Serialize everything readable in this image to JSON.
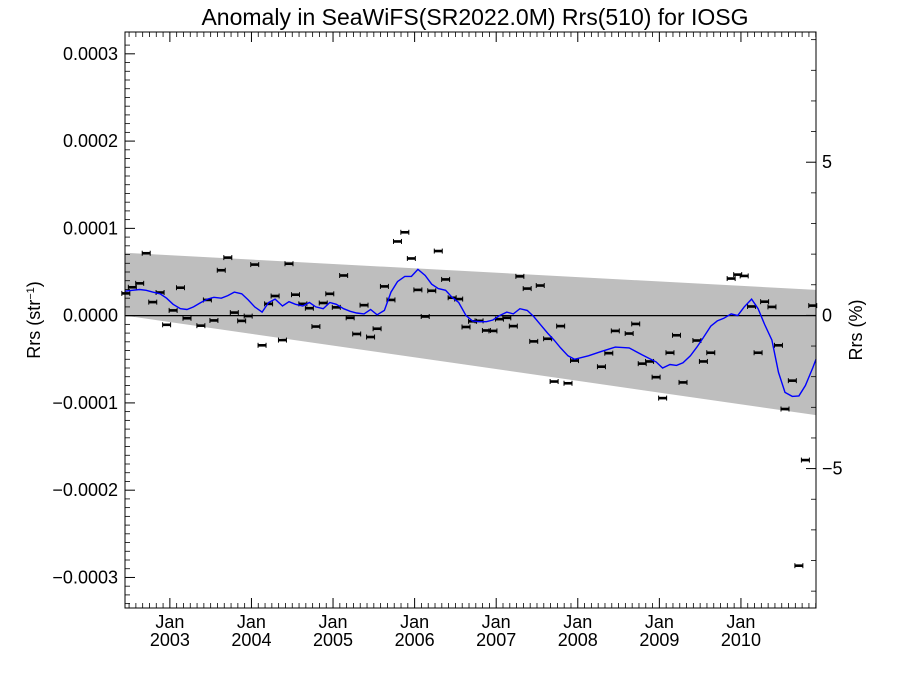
{
  "chart_data": {
    "type": "scatter",
    "title": "Anomaly in SeaWiFS(SR2022.0M) Rrs(510) for IOSG",
    "ylabel": "Rrs (str",
    "ylabel_sup": "−1",
    "ylabel_close": ")",
    "y2label": "Rrs (%)",
    "xlim": [
      2002.45,
      2010.92
    ],
    "ylim": [
      -0.000335,
      0.000325
    ],
    "y2lim": [
      -9.55,
      9.25
    ],
    "grid": false,
    "legend": "none",
    "x_ticks": [
      {
        "value": 2003.0,
        "month": "Jan",
        "year": "2003"
      },
      {
        "value": 2004.0,
        "month": "Jan",
        "year": "2004"
      },
      {
        "value": 2005.0,
        "month": "Jan",
        "year": "2005"
      },
      {
        "value": 2006.0,
        "month": "Jan",
        "year": "2006"
      },
      {
        "value": 2007.0,
        "month": "Jan",
        "year": "2007"
      },
      {
        "value": 2008.0,
        "month": "Jan",
        "year": "2008"
      },
      {
        "value": 2009.0,
        "month": "Jan",
        "year": "2009"
      },
      {
        "value": 2010.0,
        "month": "Jan",
        "year": "2010"
      }
    ],
    "y_ticks": [
      {
        "value": 0.0003,
        "label": "0.0003"
      },
      {
        "value": 0.0002,
        "label": "0.0002"
      },
      {
        "value": 0.0001,
        "label": "0.0001"
      },
      {
        "value": 0.0,
        "label": "0.0000"
      },
      {
        "value": -0.0001,
        "label": "−0.0001"
      },
      {
        "value": -0.0002,
        "label": "−0.0002"
      },
      {
        "value": -0.0003,
        "label": "−0.0003"
      }
    ],
    "y2_ticks": [
      {
        "value": 5,
        "label": "5"
      },
      {
        "value": 0,
        "label": "0"
      },
      {
        "value": -5,
        "label": "−5"
      }
    ],
    "band": {
      "x": [
        2002.45,
        2010.92
      ],
      "upper": [
        7.2e-05,
        2.95e-05
      ],
      "lower": [
        0.0,
        -0.000114
      ]
    },
    "band_color": "#bebebe",
    "line_color": "#0000ff",
    "zero_line": 0.0,
    "points": [
      {
        "x": 2002.46,
        "y": 2.55e-05
      },
      {
        "x": 2002.54,
        "y": 3.25e-05
      },
      {
        "x": 2002.63,
        "y": 3.7e-05
      },
      {
        "x": 2002.71,
        "y": 7.15e-05
      },
      {
        "x": 2002.79,
        "y": 1.55e-05
      },
      {
        "x": 2002.88,
        "y": 2.65e-05
      },
      {
        "x": 2002.96,
        "y": -1.05e-05
      },
      {
        "x": 2003.04,
        "y": 6e-06
      },
      {
        "x": 2003.13,
        "y": 3.2e-05
      },
      {
        "x": 2003.21,
        "y": -3e-06
      },
      {
        "x": 2003.38,
        "y": -1.15e-05
      },
      {
        "x": 2003.46,
        "y": 1.8e-05
      },
      {
        "x": 2003.54,
        "y": -5.5e-06
      },
      {
        "x": 2003.63,
        "y": 5.2e-05
      },
      {
        "x": 2003.71,
        "y": 6.65e-05
      },
      {
        "x": 2003.79,
        "y": 3.5e-06
      },
      {
        "x": 2003.88,
        "y": -6e-06
      },
      {
        "x": 2003.96,
        "y": -5e-07
      },
      {
        "x": 2004.04,
        "y": 5.85e-05
      },
      {
        "x": 2004.13,
        "y": -3.4e-05
      },
      {
        "x": 2004.21,
        "y": 1.35e-05
      },
      {
        "x": 2004.29,
        "y": 2.25e-05
      },
      {
        "x": 2004.38,
        "y": -2.8e-05
      },
      {
        "x": 2004.46,
        "y": 5.95e-05
      },
      {
        "x": 2004.54,
        "y": 2.4e-05
      },
      {
        "x": 2004.63,
        "y": 1.35e-05
      },
      {
        "x": 2004.71,
        "y": 8.5e-06
      },
      {
        "x": 2004.79,
        "y": -1.25e-05
      },
      {
        "x": 2004.88,
        "y": 1.45e-05
      },
      {
        "x": 2004.96,
        "y": 2.5e-05
      },
      {
        "x": 2005.04,
        "y": 9.5e-06
      },
      {
        "x": 2005.13,
        "y": 4.6e-05
      },
      {
        "x": 2005.21,
        "y": -2.5e-06
      },
      {
        "x": 2005.29,
        "y": -2.1e-05
      },
      {
        "x": 2005.38,
        "y": 1.2e-05
      },
      {
        "x": 2005.46,
        "y": -2.45e-05
      },
      {
        "x": 2005.54,
        "y": -1.5e-05
      },
      {
        "x": 2005.63,
        "y": 3.35e-05
      },
      {
        "x": 2005.71,
        "y": 1.8e-05
      },
      {
        "x": 2005.79,
        "y": 8.5e-05
      },
      {
        "x": 2005.88,
        "y": 9.55e-05
      },
      {
        "x": 2005.96,
        "y": 6.55e-05
      },
      {
        "x": 2006.04,
        "y": 2.95e-05
      },
      {
        "x": 2006.13,
        "y": -1e-06
      },
      {
        "x": 2006.21,
        "y": 2.85e-05
      },
      {
        "x": 2006.29,
        "y": 7.4e-05
      },
      {
        "x": 2006.38,
        "y": 4.15e-05
      },
      {
        "x": 2006.46,
        "y": 2.05e-05
      },
      {
        "x": 2006.54,
        "y": 1.9e-05
      },
      {
        "x": 2006.63,
        "y": -1.3e-05
      },
      {
        "x": 2006.71,
        "y": -6.5e-06
      },
      {
        "x": 2006.79,
        "y": -6e-06
      },
      {
        "x": 2006.88,
        "y": -1.7e-05
      },
      {
        "x": 2006.96,
        "y": -1.75e-05
      },
      {
        "x": 2007.04,
        "y": -4e-06
      },
      {
        "x": 2007.13,
        "y": -2.5e-06
      },
      {
        "x": 2007.21,
        "y": -1.2e-05
      },
      {
        "x": 2007.29,
        "y": 4.5e-05
      },
      {
        "x": 2007.38,
        "y": 3.1e-05
      },
      {
        "x": 2007.46,
        "y": -2.95e-05
      },
      {
        "x": 2007.54,
        "y": 3.45e-05
      },
      {
        "x": 2007.63,
        "y": -2.65e-05
      },
      {
        "x": 2007.71,
        "y": -7.55e-05
      },
      {
        "x": 2007.79,
        "y": -1.2e-05
      },
      {
        "x": 2007.88,
        "y": -7.75e-05
      },
      {
        "x": 2007.96,
        "y": -5.15e-05
      },
      {
        "x": 2008.29,
        "y": -5.85e-05
      },
      {
        "x": 2008.38,
        "y": -4.3e-05
      },
      {
        "x": 2008.46,
        "y": -1.75e-05
      },
      {
        "x": 2008.63,
        "y": -2.05e-05
      },
      {
        "x": 2008.71,
        "y": -9.5e-06
      },
      {
        "x": 2008.79,
        "y": -5.5e-05
      },
      {
        "x": 2008.88,
        "y": -5.25e-05
      },
      {
        "x": 2008.96,
        "y": -7.05e-05
      },
      {
        "x": 2009.04,
        "y": -9.45e-05
      },
      {
        "x": 2009.13,
        "y": -4.25e-05
      },
      {
        "x": 2009.21,
        "y": -2.25e-05
      },
      {
        "x": 2009.29,
        "y": -7.65e-05
      },
      {
        "x": 2009.46,
        "y": -2.85e-05
      },
      {
        "x": 2009.54,
        "y": -5.25e-05
      },
      {
        "x": 2009.63,
        "y": -4.25e-05
      },
      {
        "x": 2009.88,
        "y": 4.25e-05
      },
      {
        "x": 2009.96,
        "y": 4.7e-05
      },
      {
        "x": 2010.04,
        "y": 4.55e-05
      },
      {
        "x": 2010.13,
        "y": 1.05e-05
      },
      {
        "x": 2010.21,
        "y": -4.25e-05
      },
      {
        "x": 2010.29,
        "y": 1.6e-05
      },
      {
        "x": 2010.38,
        "y": 1e-05
      },
      {
        "x": 2010.46,
        "y": -3.4e-05
      },
      {
        "x": 2010.54,
        "y": -0.000107
      },
      {
        "x": 2010.63,
        "y": -7.45e-05
      },
      {
        "x": 2010.71,
        "y": -0.0002865
      },
      {
        "x": 2010.79,
        "y": -0.0001655
      },
      {
        "x": 2010.88,
        "y": 1.15e-05
      }
    ],
    "smooth": {
      "x": [
        2002.45,
        2002.54,
        2002.63,
        2002.71,
        2002.79,
        2002.88,
        2002.96,
        2003.04,
        2003.13,
        2003.21,
        2003.29,
        2003.38,
        2003.46,
        2003.54,
        2003.63,
        2003.71,
        2003.79,
        2003.88,
        2003.96,
        2004.04,
        2004.13,
        2004.21,
        2004.29,
        2004.38,
        2004.46,
        2004.54,
        2004.63,
        2004.71,
        2004.79,
        2004.88,
        2004.96,
        2005.04,
        2005.13,
        2005.21,
        2005.29,
        2005.38,
        2005.46,
        2005.54,
        2005.63,
        2005.71,
        2005.79,
        2005.88,
        2005.96,
        2006.04,
        2006.13,
        2006.21,
        2006.29,
        2006.38,
        2006.46,
        2006.54,
        2006.63,
        2006.71,
        2006.79,
        2006.88,
        2006.96,
        2007.04,
        2007.13,
        2007.21,
        2007.29,
        2007.38,
        2007.46,
        2007.54,
        2007.63,
        2007.71,
        2007.79,
        2007.88,
        2007.96,
        2008.13,
        2008.29,
        2008.46,
        2008.63,
        2008.79,
        2008.96,
        2009.04,
        2009.13,
        2009.21,
        2009.29,
        2009.38,
        2009.46,
        2009.54,
        2009.63,
        2009.71,
        2009.79,
        2009.88,
        2009.96,
        2010.04,
        2010.13,
        2010.21,
        2010.29,
        2010.38,
        2010.46,
        2010.54,
        2010.63,
        2010.71,
        2010.79,
        2010.88,
        2010.92
      ],
      "y": [
        2.8e-05,
        2.9e-05,
        3e-05,
        2.9e-05,
        2.7e-05,
        2.5e-05,
        2e-05,
        1.3e-05,
        8e-06,
        7e-06,
        1e-05,
        1.5e-05,
        1.9e-05,
        2.1e-05,
        2e-05,
        2.3e-05,
        2.7e-05,
        2.5e-05,
        1.8e-05,
        1e-05,
        4e-06,
        1.5e-05,
        1.9e-05,
        1.1e-05,
        1.6e-05,
        1.3e-05,
        1.1e-05,
        1.5e-05,
        1e-05,
        8e-06,
        1.5e-05,
        1.3e-05,
        8e-06,
        5e-06,
        3e-06,
        2e-06,
        7e-06,
        1e-06,
        6e-06,
        2.7e-05,
        3.9e-05,
        4.5e-05,
        4.5e-05,
        5.3e-05,
        4.6e-05,
        3.6e-05,
        3.1e-05,
        2.9e-05,
        2.1e-05,
        1.5e-05,
        0.0,
        -6e-06,
        -7e-06,
        -7e-06,
        -5e-06,
        0.0,
        4e-06,
        2e-06,
        8e-06,
        6e-06,
        -1e-06,
        -1e-05,
        -2e-05,
        -2.8e-05,
        -3.7e-05,
        -4.6e-05,
        -5e-05,
        -4.6e-05,
        -4.1e-05,
        -3.6e-05,
        -3.7e-05,
        -4.5e-05,
        -5.3e-05,
        -6e-05,
        -5.6e-05,
        -5.7e-05,
        -5.4e-05,
        -4.6e-05,
        -3.6e-05,
        -2.5e-05,
        -1.2e-05,
        -6e-06,
        -3e-06,
        2e-06,
        0.0,
        1e-05,
        1.9e-05,
        8e-06,
        -1e-05,
        -2.8e-05,
        -6.5e-05,
        -8.8e-05,
        -9.25e-05,
        -9.2e-05,
        -8e-05,
        -6e-05,
        -5e-05
      ]
    }
  }
}
